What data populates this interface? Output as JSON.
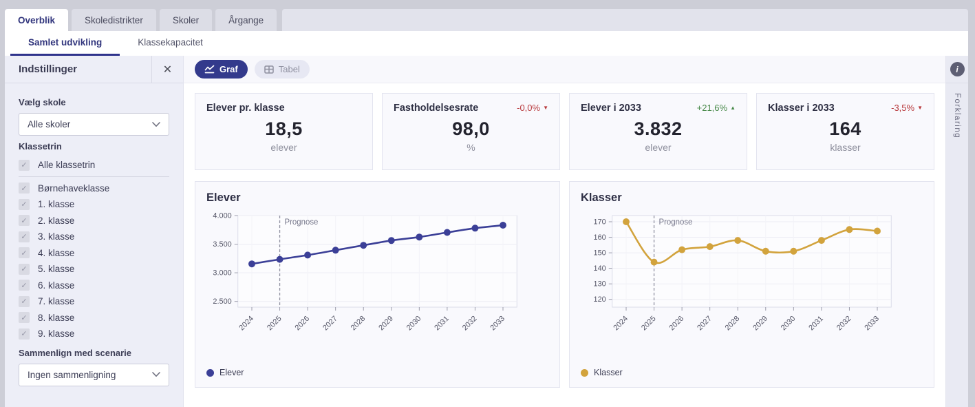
{
  "tabs": [
    {
      "label": "Overblik",
      "active": true
    },
    {
      "label": "Skoledistrikter",
      "active": false
    },
    {
      "label": "Skoler",
      "active": false
    },
    {
      "label": "Årgange",
      "active": false
    }
  ],
  "subtabs": [
    {
      "label": "Samlet udvikling",
      "active": true
    },
    {
      "label": "Klassekapacitet",
      "active": false
    }
  ],
  "toolbar": {
    "graf_label": "Graf",
    "tabel_label": "Tabel"
  },
  "sidebar": {
    "title": "Indstillinger",
    "school_label": "Vælg skole",
    "school_value": "Alle skoler",
    "klassetrin_label": "Klassetrin",
    "all_klassetrin_label": "Alle klassetrin",
    "klassetrin": [
      "Børnehaveklasse",
      "1. klasse",
      "2. klasse",
      "3. klasse",
      "4. klasse",
      "5. klasse",
      "6. klasse",
      "7. klasse",
      "8. klasse",
      "9. klasse"
    ],
    "scenario_label": "Sammenlign med scenarie",
    "scenario_value": "Ingen sammenligning"
  },
  "kpis": [
    {
      "title": "Elever pr. klasse",
      "value": "18,5",
      "unit": "elever"
    },
    {
      "title": "Fastholdelsesrate",
      "delta": "-0,0%",
      "delta_dir": "down",
      "value": "98,0",
      "unit": "%"
    },
    {
      "title": "Elever i 2033",
      "delta": "+21,6%",
      "delta_dir": "up",
      "value": "3.832",
      "unit": "elever"
    },
    {
      "title": "Klasser i 2033",
      "delta": "-3,5%",
      "delta_dir": "down",
      "value": "164",
      "unit": "klasser"
    }
  ],
  "right_rail": {
    "label": "Forklaring"
  },
  "icons": {
    "close": "✕",
    "check": "✓",
    "info": "i",
    "caret_up": "▲",
    "caret_down": "▼"
  },
  "colors": {
    "accent": "#333a8c",
    "elever_line": "#3b3f97",
    "klasser_line": "#d2a33d",
    "delta_up": "#478948",
    "delta_down": "#b8393c",
    "sidebar_bg": "#edeef7",
    "card_bg": "#f9f9fd"
  },
  "chart_data": [
    {
      "type": "line",
      "title": "Elever",
      "legend": "Elever",
      "color": "#3b3f97",
      "x": [
        2024,
        2025,
        2026,
        2027,
        2028,
        2029,
        2030,
        2031,
        2032,
        2033
      ],
      "values": [
        3155,
        3235,
        3310,
        3395,
        3480,
        3565,
        3625,
        3705,
        3780,
        3832
      ],
      "ylim": [
        2400,
        4000
      ],
      "yticks": [
        {
          "value": 2500,
          "label": "2.500"
        },
        {
          "value": 3000,
          "label": "3.000"
        },
        {
          "value": 3500,
          "label": "3.500"
        },
        {
          "value": 4000,
          "label": "4.000"
        }
      ],
      "prognose_year": 2025,
      "prognose_label": "Prognose",
      "grid": true,
      "legend_position": "bottom-left"
    },
    {
      "type": "line",
      "title": "Klasser",
      "legend": "Klasser",
      "color": "#d2a33d",
      "x": [
        2024,
        2025,
        2026,
        2027,
        2028,
        2029,
        2030,
        2031,
        2032,
        2033
      ],
      "values": [
        170,
        144,
        152,
        154,
        158,
        151,
        151,
        158,
        165,
        164
      ],
      "ylim": [
        115,
        174
      ],
      "yticks": [
        {
          "value": 120,
          "label": "120"
        },
        {
          "value": 130,
          "label": "130"
        },
        {
          "value": 140,
          "label": "140"
        },
        {
          "value": 150,
          "label": "150"
        },
        {
          "value": 160,
          "label": "160"
        },
        {
          "value": 170,
          "label": "170"
        }
      ],
      "prognose_year": 2025,
      "prognose_label": "Prognose",
      "grid": true,
      "legend_position": "bottom-left"
    }
  ]
}
